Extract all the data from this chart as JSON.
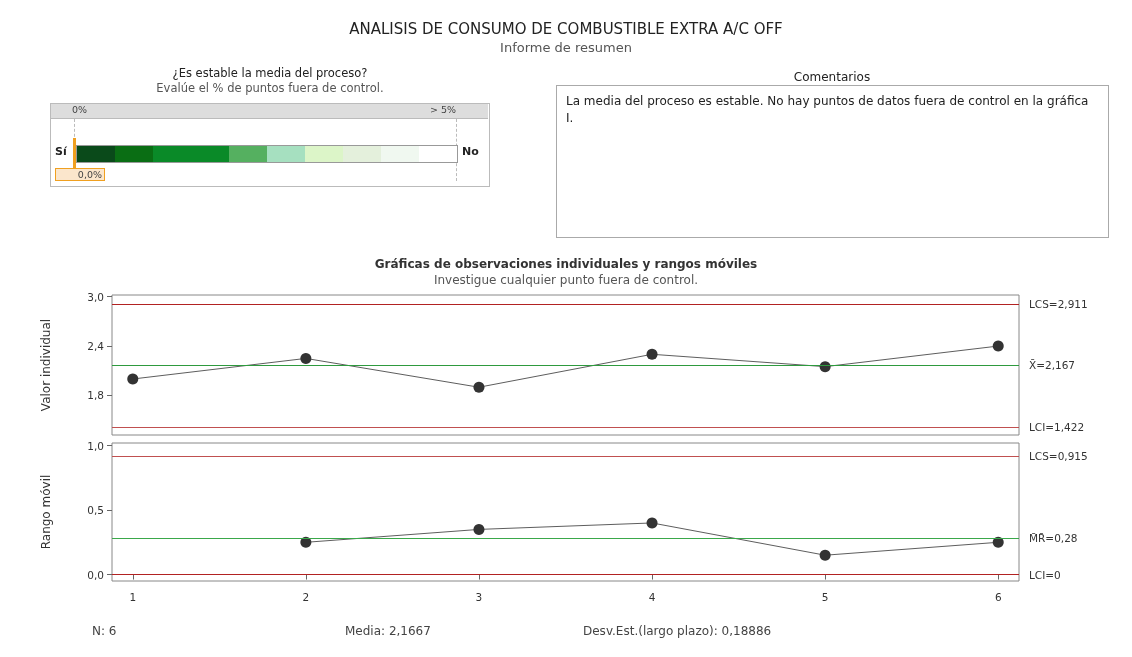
{
  "chart_data": [
    {
      "type": "other",
      "title": "ANALISIS DE CONSUMO DE COMBUSTIBLE EXTRA A/C OFF",
      "subtitle": "Informe de resumen",
      "annotations": [
        "¿Es estable la media del proceso?",
        "Evalúe el % de puntos fuera de control.",
        "0%",
        "> 5%",
        "Sí",
        "No",
        "0,0%"
      ]
    },
    {
      "type": "other",
      "title": "Comentarios",
      "annotations": [
        "La media del proceso es estable. No hay puntos de datos fuera de control en la gráfica I."
      ]
    },
    {
      "type": "line",
      "title": "Gráficas de observaciones individuales y rangos móviles",
      "subtitle": "Investigue cualquier punto fuera de control.",
      "ylabel": "Valor individual",
      "x": [
        1,
        2,
        3,
        4,
        5,
        6
      ],
      "xlim": [
        0.88,
        6.12
      ],
      "xticks": [
        1,
        2,
        3,
        4,
        5,
        6
      ],
      "ylim": [
        1.32,
        3.02
      ],
      "yticks": [
        {
          "value": 1.8,
          "label": "1,8"
        },
        {
          "value": 2.4,
          "label": "2,4"
        },
        {
          "value": 3.0,
          "label": "3,0"
        }
      ],
      "series": [
        {
          "color": "#333333",
          "values": [
            2.0,
            2.25,
            1.9,
            2.3,
            2.15,
            2.4
          ]
        }
      ],
      "ref_lines": [
        {
          "axis": "y",
          "value": 2.911,
          "label": "LCS=2,911",
          "color": "#b22222"
        },
        {
          "axis": "y",
          "value": 2.167,
          "label": "X̄=2,167",
          "color": "#2e9a3e"
        },
        {
          "axis": "y",
          "value": 1.422,
          "label": "LCI=1,422",
          "color": "#c05050"
        }
      ],
      "marker": "circle",
      "grid": false,
      "tick_labels": "y"
    },
    {
      "type": "line",
      "ylabel": "Rango móvil",
      "xlim": [
        0.88,
        6.12
      ],
      "xticks": [
        1,
        2,
        3,
        4,
        5,
        6
      ],
      "ylim": [
        -0.05,
        1.02
      ],
      "yticks": [
        {
          "value": 0,
          "label": "0,0"
        },
        {
          "value": 0.5,
          "label": "0,5"
        },
        {
          "value": 1.0,
          "label": "1,0"
        }
      ],
      "series": [
        {
          "color": "#333333",
          "x": [
            2,
            3,
            4,
            5,
            6
          ],
          "values": [
            0.25,
            0.35,
            0.4,
            0.15,
            0.25
          ]
        }
      ],
      "ref_lines": [
        {
          "axis": "y",
          "value": 0.915,
          "label": "LCS=0,915",
          "color": "#c05050"
        },
        {
          "axis": "y",
          "value": 0.28,
          "label": "M̄R̄=0,28",
          "color": "#3aa84a"
        },
        {
          "axis": "y",
          "value": 0,
          "label": "LCI=0",
          "color": "#b22222"
        }
      ],
      "annotations": [
        "N: 6",
        "Media: 2,1667",
        "Desv.Est.(largo plazo): 0,18886"
      ],
      "marker": "circle",
      "grid": false
    }
  ]
}
